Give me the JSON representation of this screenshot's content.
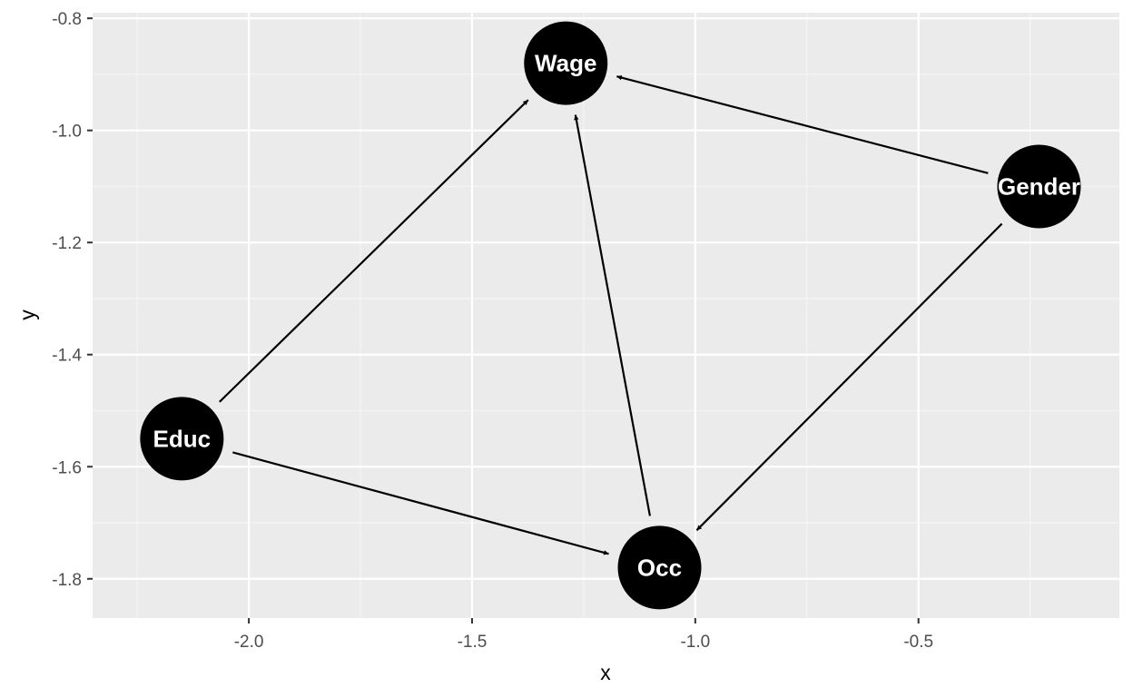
{
  "chart_data": {
    "type": "scatter",
    "title": "",
    "xlabel": "x",
    "ylabel": "y",
    "xlim": [
      -2.35,
      -0.05
    ],
    "ylim": [
      -1.87,
      -0.79
    ],
    "x_ticks": [
      {
        "value": -2.0,
        "label": "-2.0"
      },
      {
        "value": -1.5,
        "label": "-1.5"
      },
      {
        "value": -1.0,
        "label": "-1.0"
      },
      {
        "value": -0.5,
        "label": "-0.5"
      }
    ],
    "y_ticks": [
      {
        "value": -0.8,
        "label": "-0.8"
      },
      {
        "value": -1.0,
        "label": "-1.0"
      },
      {
        "value": -1.2,
        "label": "-1.2"
      },
      {
        "value": -1.4,
        "label": "-1.4"
      },
      {
        "value": -1.6,
        "label": "-1.6"
      },
      {
        "value": -1.8,
        "label": "-1.8"
      }
    ],
    "grid": true,
    "nodes": [
      {
        "name": "Wage",
        "x": -1.29,
        "y": -0.88
      },
      {
        "name": "Gender",
        "x": -0.23,
        "y": -1.1
      },
      {
        "name": "Educ",
        "x": -2.15,
        "y": -1.55
      },
      {
        "name": "Occ",
        "x": -1.08,
        "y": -1.78
      }
    ],
    "edges": [
      {
        "from": "Educ",
        "to": "Wage"
      },
      {
        "from": "Educ",
        "to": "Occ"
      },
      {
        "from": "Occ",
        "to": "Wage"
      },
      {
        "from": "Gender",
        "to": "Wage"
      },
      {
        "from": "Gender",
        "to": "Occ"
      }
    ]
  },
  "colors": {
    "panel_background": "#ebebeb",
    "grid_major": "#ffffff",
    "grid_minor": "#f5f5f5",
    "node_fill": "#000000",
    "node_text": "#ffffff",
    "edge": "#000000",
    "tick_text": "#4d4d4d",
    "tick_mark": "#333333"
  }
}
